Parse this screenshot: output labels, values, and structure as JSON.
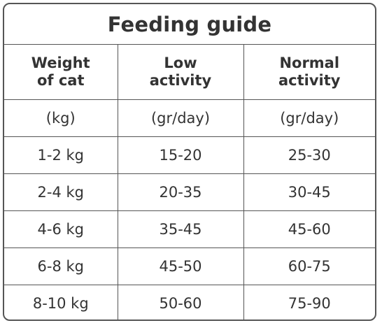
{
  "title": "Feeding guide",
  "headers": [
    [
      "Weight",
      "of cat"
    ],
    [
      "Low",
      "activity"
    ],
    [
      "Normal",
      "activity"
    ]
  ],
  "units": [
    "(kg)",
    "(gr/day)",
    "(gr/day)"
  ],
  "rows": [
    [
      "1-2 kg",
      "15-20",
      "25-30"
    ],
    [
      "2-4 kg",
      "20-35",
      "30-45"
    ],
    [
      "4-6 kg",
      "35-45",
      "45-60"
    ],
    [
      "6-8 kg",
      "45-50",
      "60-75"
    ],
    [
      "8-10 kg",
      "50-60",
      "75-90"
    ]
  ],
  "colors": {
    "border": "#555555",
    "text": "#333333",
    "background": "#ffffff"
  }
}
